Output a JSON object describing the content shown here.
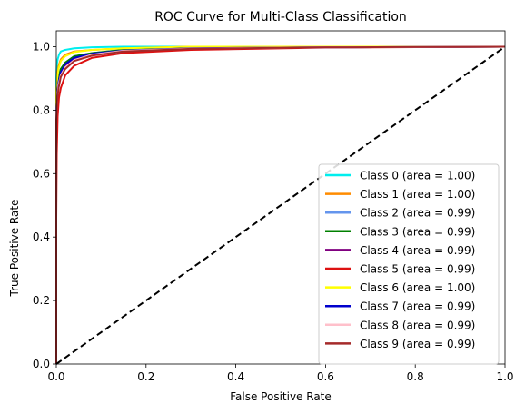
{
  "chart_data": {
    "type": "line",
    "title": "ROC Curve for Multi-Class Classification",
    "xlabel": "False Positive Rate",
    "ylabel": "True Positive Rate",
    "xlim": [
      0.0,
      1.0
    ],
    "ylim": [
      0.0,
      1.05
    ],
    "xticks": [
      0.0,
      0.2,
      0.4,
      0.6,
      0.8,
      1.0
    ],
    "yticks": [
      0.0,
      0.2,
      0.4,
      0.6,
      0.8,
      1.0
    ],
    "xtick_labels": [
      "0.0",
      "0.2",
      "0.4",
      "0.6",
      "0.8",
      "1.0"
    ],
    "ytick_labels": [
      "0.0",
      "0.2",
      "0.4",
      "0.6",
      "0.8",
      "1.0"
    ],
    "legend_position": "lower-right",
    "grid": false,
    "diagonal": {
      "x": [
        0,
        1
      ],
      "y": [
        0,
        1
      ],
      "style": "dashed",
      "color": "#000000"
    },
    "series": [
      {
        "name": "Class 0 (area = 1.00)",
        "color": "#00eeee",
        "x": [
          0,
          0,
          0.001,
          0.003,
          0.006,
          0.01,
          0.02,
          0.04,
          0.08,
          0.15,
          1.0
        ],
        "y": [
          0,
          0.9,
          0.94,
          0.96,
          0.975,
          0.985,
          0.99,
          0.995,
          0.998,
          1.0,
          1.0
        ]
      },
      {
        "name": "Class 1 (area = 1.00)",
        "color": "#ff8c00",
        "x": [
          0,
          0,
          0.002,
          0.005,
          0.01,
          0.02,
          0.04,
          0.08,
          0.15,
          0.3,
          1.0
        ],
        "y": [
          0,
          0.85,
          0.91,
          0.94,
          0.96,
          0.975,
          0.985,
          0.99,
          0.995,
          1.0,
          1.0
        ]
      },
      {
        "name": "Class 2 (area = 0.99)",
        "color": "#6495ed",
        "x": [
          0,
          0,
          0.002,
          0.005,
          0.01,
          0.02,
          0.04,
          0.08,
          0.15,
          0.3,
          0.6,
          1.0
        ],
        "y": [
          0,
          0.82,
          0.87,
          0.91,
          0.93,
          0.95,
          0.97,
          0.98,
          0.99,
          0.995,
          0.998,
          1.0
        ]
      },
      {
        "name": "Class 3 (area = 0.99)",
        "color": "#008000",
        "x": [
          0,
          0,
          0.002,
          0.005,
          0.01,
          0.02,
          0.04,
          0.08,
          0.15,
          0.3,
          0.6,
          1.0
        ],
        "y": [
          0,
          0.8,
          0.86,
          0.9,
          0.93,
          0.95,
          0.97,
          0.98,
          0.99,
          0.995,
          0.998,
          1.0
        ]
      },
      {
        "name": "Class 4 (area = 0.99)",
        "color": "#800080",
        "x": [
          0,
          0,
          0.002,
          0.005,
          0.01,
          0.02,
          0.04,
          0.08,
          0.15,
          0.3,
          0.6,
          1.0
        ],
        "y": [
          0,
          0.78,
          0.84,
          0.88,
          0.91,
          0.94,
          0.96,
          0.975,
          0.985,
          0.993,
          0.998,
          1.0
        ]
      },
      {
        "name": "Class 5 (area = 0.99)",
        "color": "#dd1111",
        "x": [
          0,
          0,
          0.001,
          0.003,
          0.006,
          0.01,
          0.02,
          0.04,
          0.08,
          0.15,
          0.3,
          0.6,
          1.0
        ],
        "y": [
          0,
          0.46,
          0.66,
          0.78,
          0.84,
          0.87,
          0.91,
          0.94,
          0.965,
          0.98,
          0.99,
          0.997,
          1.0
        ]
      },
      {
        "name": "Class 6 (area = 1.00)",
        "color": "#ffff00",
        "x": [
          0,
          0,
          0.002,
          0.005,
          0.01,
          0.02,
          0.04,
          0.08,
          0.15,
          0.3,
          1.0
        ],
        "y": [
          0,
          0.86,
          0.9,
          0.93,
          0.955,
          0.97,
          0.983,
          0.99,
          0.995,
          1.0,
          1.0
        ]
      },
      {
        "name": "Class 7 (area = 0.99)",
        "color": "#0000cd",
        "x": [
          0,
          0,
          0.002,
          0.005,
          0.01,
          0.02,
          0.04,
          0.08,
          0.15,
          0.3,
          0.6,
          1.0
        ],
        "y": [
          0,
          0.8,
          0.85,
          0.89,
          0.92,
          0.945,
          0.965,
          0.978,
          0.988,
          0.995,
          0.998,
          1.0
        ]
      },
      {
        "name": "Class 8 (area = 0.99)",
        "color": "#ffc0cb",
        "x": [
          0,
          0,
          0.002,
          0.005,
          0.01,
          0.02,
          0.04,
          0.08,
          0.15,
          0.3,
          0.6,
          1.0
        ],
        "y": [
          0,
          0.79,
          0.84,
          0.88,
          0.91,
          0.935,
          0.958,
          0.975,
          0.987,
          0.994,
          0.998,
          1.0
        ]
      },
      {
        "name": "Class 9 (area = 0.99)",
        "color": "#a52a2a",
        "x": [
          0,
          0,
          0.002,
          0.005,
          0.01,
          0.02,
          0.04,
          0.08,
          0.15,
          0.3,
          0.6,
          1.0
        ],
        "y": [
          0,
          0.77,
          0.83,
          0.87,
          0.905,
          0.93,
          0.955,
          0.972,
          0.985,
          0.993,
          0.998,
          1.0
        ]
      }
    ]
  }
}
